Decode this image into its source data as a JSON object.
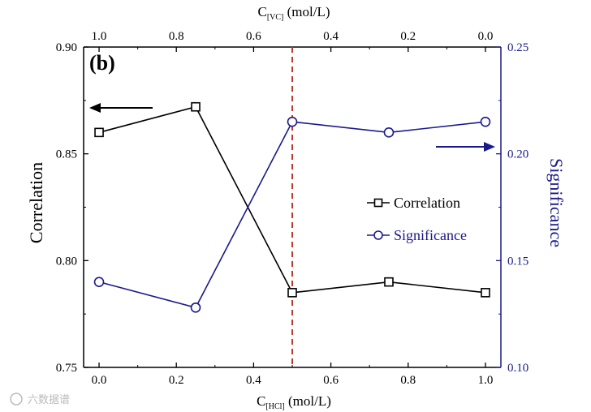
{
  "chart_data": {
    "type": "line",
    "panel_label": "(b)",
    "x": [
      0.0,
      0.25,
      0.5,
      0.75,
      1.0
    ],
    "xlabel_main": "C",
    "xlabel_sub": "[HCl]",
    "xlabel_unit": " (mol/L)",
    "x_ticks": [
      "0.0",
      "0.2",
      "0.4",
      "0.6",
      "0.8",
      "1.0"
    ],
    "x_tick_values": [
      0.0,
      0.2,
      0.4,
      0.6,
      0.8,
      1.0
    ],
    "xlim": [
      -0.04,
      1.04
    ],
    "top_xlabel_main": "C",
    "top_xlabel_sub": "[VC]",
    "top_xlabel_unit": " (mol/L)",
    "top_x_ticks": [
      "1.0",
      "0.8",
      "0.6",
      "0.4",
      "0.2",
      "0.0"
    ],
    "ylabel_left": "Correlation",
    "ylim_left": [
      0.75,
      0.9
    ],
    "y_ticks_left": [
      "0.75",
      "0.80",
      "0.85",
      "0.90"
    ],
    "y_tick_values_left": [
      0.75,
      0.8,
      0.85,
      0.9
    ],
    "ylabel_right": "Significance",
    "ylim_right": [
      0.1,
      0.25
    ],
    "y_ticks_right": [
      "0.10",
      "0.15",
      "0.20",
      "0.25"
    ],
    "y_tick_values_right": [
      0.1,
      0.15,
      0.2,
      0.25
    ],
    "vline_x": 0.5,
    "series": [
      {
        "name": "Correlation",
        "axis": "left",
        "marker": "square",
        "color": "#000000",
        "values": [
          0.86,
          0.872,
          0.785,
          0.79,
          0.785
        ]
      },
      {
        "name": "Significance",
        "axis": "right",
        "marker": "circle",
        "color": "#1a1a8c",
        "values": [
          0.14,
          0.128,
          0.215,
          0.21,
          0.215
        ]
      }
    ],
    "legend_position": "right-center",
    "annotations": [
      "left arrow toward Correlation axis",
      "right arrow toward Significance axis"
    ]
  },
  "colors": {
    "axis": "#000000",
    "right_axis": "#1a1a8c",
    "vline": "#c0392b",
    "watermark": "#bbbbbb"
  },
  "watermark": "六数据谱"
}
